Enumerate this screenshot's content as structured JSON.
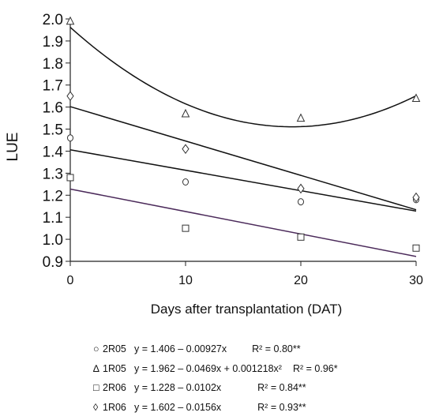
{
  "chart_data": {
    "type": "scatter",
    "title": "",
    "xlabel": "Days after transplantation (DAT)",
    "ylabel": "LUE",
    "xlim": [
      0,
      30
    ],
    "ylim": [
      0.9,
      2.0
    ],
    "x_ticks": [
      "0",
      "10",
      "20",
      "30"
    ],
    "y_ticks": [
      "0.9",
      "1.0",
      "1.1",
      "1.2",
      "1.3",
      "1.4",
      "1.5",
      "1.6",
      "1.7",
      "1.8",
      "1.9",
      "2.0"
    ],
    "grid": false,
    "legend_position": "bottom",
    "series": [
      {
        "name": "2R05",
        "marker": "circle",
        "x": [
          0,
          10,
          20,
          30
        ],
        "values": [
          1.46,
          1.26,
          1.17,
          1.18
        ],
        "fit": {
          "type": "linear",
          "intercept": 1.406,
          "slope": -0.00927
        },
        "line_color": "#111111",
        "equation": "y = 1.406 – 0.00927x",
        "r2": "R² = 0.80**"
      },
      {
        "name": "1R05",
        "marker": "triangle",
        "x": [
          0,
          10,
          20,
          30
        ],
        "values": [
          1.99,
          1.57,
          1.55,
          1.64
        ],
        "fit": {
          "type": "quadratic",
          "intercept": 1.962,
          "slope": -0.0469,
          "quad": 0.001218
        },
        "line_color": "#111111",
        "equation": "y = 1.962 – 0.0469x + 0.001218x²",
        "r2": "R² = 0.96*"
      },
      {
        "name": "2R06",
        "marker": "square",
        "x": [
          0,
          10,
          20,
          30
        ],
        "values": [
          1.28,
          1.05,
          1.01,
          0.96
        ],
        "fit": {
          "type": "linear",
          "intercept": 1.228,
          "slope": -0.0102
        },
        "line_color": "#4b2a5a",
        "equation": "y = 1.228 – 0.0102x",
        "r2": "R² = 0.84**"
      },
      {
        "name": "1R06",
        "marker": "diamond",
        "x": [
          0,
          10,
          20,
          30
        ],
        "values": [
          1.65,
          1.41,
          1.23,
          1.19
        ],
        "fit": {
          "type": "linear",
          "intercept": 1.602,
          "slope": -0.0156
        },
        "line_color": "#111111",
        "equation": "y = 1.602 – 0.0156x",
        "r2": "R² = 0.93**"
      }
    ],
    "legend": [
      {
        "symbol": "○",
        "name": "2R05",
        "equation": "y = 1.406 – 0.00927x",
        "r2": "R² = 0.80**"
      },
      {
        "symbol": "∆",
        "name": "1R05",
        "equation": "y = 1.962 – 0.0469x + 0.001218x²",
        "r2": "R² = 0.96*"
      },
      {
        "symbol": "□",
        "name": "2R06",
        "equation": "y = 1.228 – 0.0102x",
        "r2": "R² = 0.84**"
      },
      {
        "symbol": "◊",
        "name": "1R06",
        "equation": "y = 1.602 – 0.0156x",
        "r2": "R² = 0.93**"
      }
    ]
  }
}
